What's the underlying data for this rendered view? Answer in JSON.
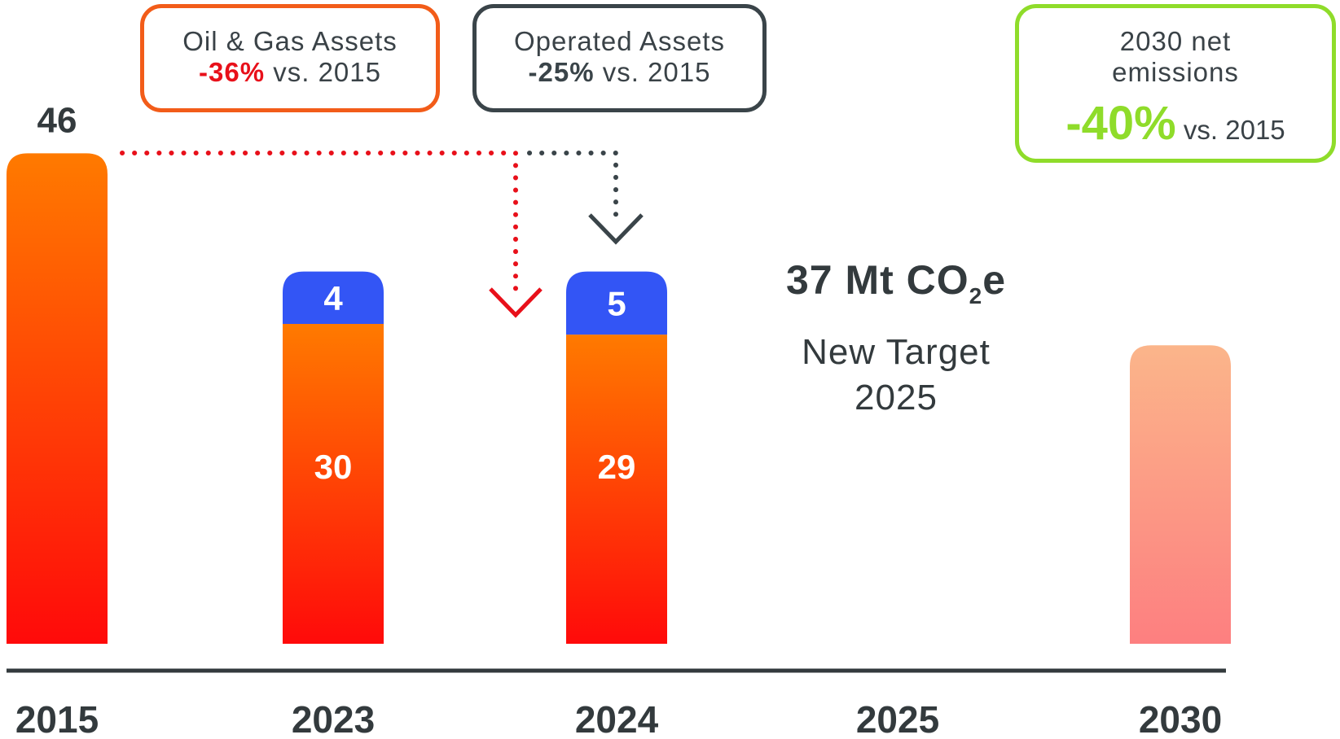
{
  "chart_data": {
    "type": "bar",
    "categories": [
      "2015",
      "2023",
      "2024",
      "2025",
      "2030"
    ],
    "series": [
      {
        "values": [
          46,
          30,
          29,
          null,
          null
        ]
      },
      {
        "values": [
          null,
          4,
          5,
          null,
          null
        ]
      }
    ],
    "target_2030_bar": 28,
    "ylim": [
      0,
      50
    ],
    "colors": {
      "main_top": "#ff7a00",
      "main_bottom": "#ff0a0a",
      "stack": "#3355f5",
      "target_top": "#fbb58a",
      "target_bottom": "#fd7f80",
      "axis": "#333a3d",
      "oil_gas": "#e8101a",
      "operated": "#3a4449",
      "net": "#8fdc2a"
    }
  },
  "callouts": {
    "oil_gas": {
      "title": "Oil & Gas Assets",
      "pct": "-36%",
      "suffix": " vs. 2015"
    },
    "operated": {
      "title": "Operated Assets",
      "pct": "-25%",
      "suffix": " vs. 2015"
    },
    "net": {
      "line1": "2030 net",
      "line2": "emissions",
      "pct": "-40%",
      "suffix": " vs. 2015"
    }
  },
  "target": {
    "value_main": "37 Mt CO",
    "value_sub": "2",
    "value_end": "e",
    "label_line1": "New Target",
    "label_line2": "2025"
  }
}
